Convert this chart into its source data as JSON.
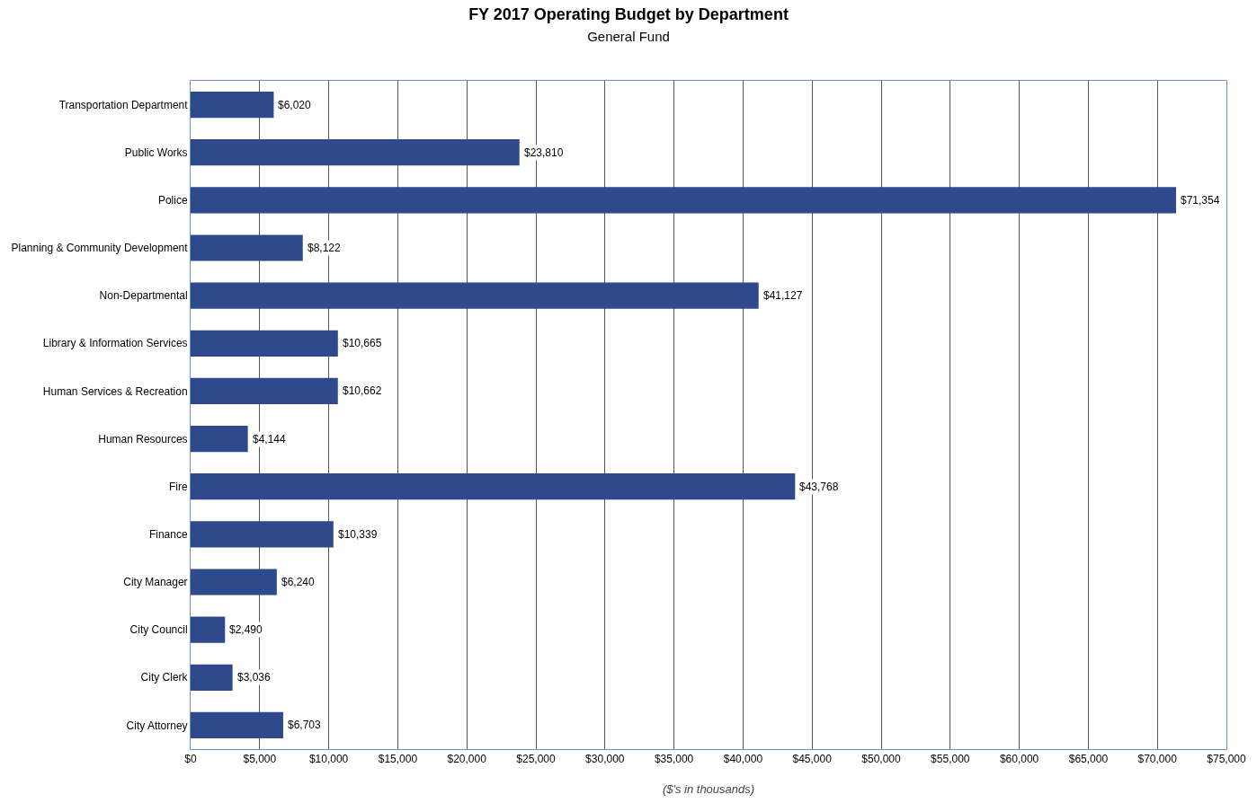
{
  "chart_data": {
    "type": "bar",
    "orientation": "horizontal",
    "title": "FY 2017 Operating Budget by Department",
    "subtitle": "General Fund",
    "xlabel": "($'s in thousands)",
    "categories": [
      "Transportation Department",
      "Public Works",
      "Police",
      "Planning & Community Development",
      "Non-Departmental",
      "Library & Information Services",
      "Human Services & Recreation",
      "Human Resources",
      "Fire",
      "Finance",
      "City Manager",
      "City Council",
      "City Clerk",
      "City Attorney"
    ],
    "values": [
      6020,
      23810,
      71354,
      8122,
      41127,
      10665,
      10662,
      4144,
      43768,
      10339,
      6240,
      2490,
      3036,
      6703
    ],
    "value_labels": [
      "$6,020",
      "$23,810",
      "$71,354",
      "$8,122",
      "$41,127",
      "$10,665",
      "$10,662",
      "$4,144",
      "$43,768",
      "$10,339",
      "$6,240",
      "$2,490",
      "$3,036",
      "$6,703"
    ],
    "color": "#2e4a8c",
    "xlim": [
      0,
      75000
    ],
    "xticks": [
      {
        "value": 0,
        "label": "$0"
      },
      {
        "value": 5000,
        "label": "$5,000"
      },
      {
        "value": 10000,
        "label": "$10,000"
      },
      {
        "value": 15000,
        "label": "$15,000"
      },
      {
        "value": 20000,
        "label": "$20,000"
      },
      {
        "value": 25000,
        "label": "$25,000"
      },
      {
        "value": 30000,
        "label": "$30,000"
      },
      {
        "value": 35000,
        "label": "$35,000"
      },
      {
        "value": 40000,
        "label": "$40,000"
      },
      {
        "value": 45000,
        "label": "$45,000"
      },
      {
        "value": 50000,
        "label": "$50,000"
      },
      {
        "value": 55000,
        "label": "$55,000"
      },
      {
        "value": 60000,
        "label": "$60,000"
      },
      {
        "value": 65000,
        "label": "$65,000"
      },
      {
        "value": 70000,
        "label": "$70,000"
      },
      {
        "value": 75000,
        "label": "$75,000"
      }
    ],
    "grid": "x"
  }
}
